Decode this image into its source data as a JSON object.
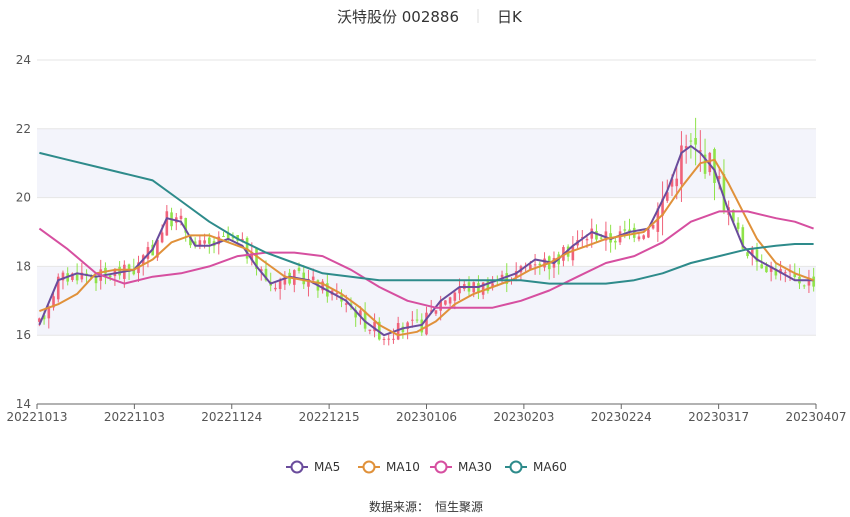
{
  "title": {
    "name": "沃特股份 002886",
    "period": "日K"
  },
  "source_label": "数据来源：",
  "source_value": "恒生聚源",
  "chart_data": {
    "type": "candlestick",
    "x_ticks": [
      "20221013",
      "20221103",
      "20221124",
      "20221215",
      "20230106",
      "20230203",
      "20230224",
      "20230317",
      "20230407"
    ],
    "y_ticks": [
      "14",
      "16",
      "18",
      "20",
      "22",
      "24"
    ],
    "ylim": [
      14,
      24
    ],
    "grid": true,
    "legend_position": "bottom-center",
    "colors": {
      "up": "#f0627a",
      "down": "#8fe34a",
      "band": "#f3f4fb",
      "grid": "#e6e6e6"
    },
    "ma_series": [
      {
        "name": "MA5",
        "color": "#6a4c9c",
        "points": [
          [
            0,
            16.3
          ],
          [
            4,
            17.6
          ],
          [
            8,
            17.8
          ],
          [
            12,
            17.7
          ],
          [
            16,
            17.8
          ],
          [
            20,
            17.9
          ],
          [
            24,
            18.5
          ],
          [
            27,
            19.4
          ],
          [
            30,
            19.3
          ],
          [
            33,
            18.6
          ],
          [
            36,
            18.6
          ],
          [
            40,
            18.8
          ],
          [
            43,
            18.6
          ],
          [
            46,
            18.0
          ],
          [
            49,
            17.5
          ],
          [
            53,
            17.7
          ],
          [
            57,
            17.6
          ],
          [
            61,
            17.3
          ],
          [
            65,
            17.0
          ],
          [
            69,
            16.4
          ],
          [
            73,
            16.0
          ],
          [
            77,
            16.2
          ],
          [
            81,
            16.3
          ],
          [
            85,
            17.0
          ],
          [
            89,
            17.4
          ],
          [
            93,
            17.4
          ],
          [
            97,
            17.6
          ],
          [
            101,
            17.8
          ],
          [
            105,
            18.2
          ],
          [
            109,
            18.1
          ],
          [
            113,
            18.6
          ],
          [
            117,
            19.0
          ],
          [
            121,
            18.8
          ],
          [
            125,
            19.0
          ],
          [
            129,
            19.1
          ],
          [
            133,
            20.2
          ],
          [
            136,
            21.3
          ],
          [
            138,
            21.5
          ],
          [
            140,
            21.3
          ],
          [
            143,
            20.8
          ],
          [
            146,
            19.6
          ],
          [
            149,
            18.6
          ],
          [
            152,
            18.2
          ],
          [
            156,
            17.9
          ],
          [
            160,
            17.6
          ],
          [
            163,
            17.6
          ],
          [
            164,
            17.6
          ]
        ]
      },
      {
        "name": "MA10",
        "color": "#e0913a",
        "points": [
          [
            0,
            16.7
          ],
          [
            4,
            16.9
          ],
          [
            8,
            17.2
          ],
          [
            12,
            17.8
          ],
          [
            16,
            17.9
          ],
          [
            20,
            17.9
          ],
          [
            24,
            18.2
          ],
          [
            28,
            18.7
          ],
          [
            32,
            18.9
          ],
          [
            36,
            18.9
          ],
          [
            40,
            18.7
          ],
          [
            44,
            18.5
          ],
          [
            48,
            18.1
          ],
          [
            52,
            17.7
          ],
          [
            56,
            17.6
          ],
          [
            60,
            17.5
          ],
          [
            64,
            17.2
          ],
          [
            68,
            16.8
          ],
          [
            72,
            16.3
          ],
          [
            76,
            16.0
          ],
          [
            80,
            16.1
          ],
          [
            84,
            16.4
          ],
          [
            88,
            16.9
          ],
          [
            92,
            17.2
          ],
          [
            96,
            17.4
          ],
          [
            100,
            17.6
          ],
          [
            104,
            17.9
          ],
          [
            108,
            18.1
          ],
          [
            112,
            18.4
          ],
          [
            116,
            18.6
          ],
          [
            120,
            18.8
          ],
          [
            124,
            18.9
          ],
          [
            128,
            19.0
          ],
          [
            132,
            19.5
          ],
          [
            136,
            20.3
          ],
          [
            140,
            21.0
          ],
          [
            143,
            21.1
          ],
          [
            146,
            20.4
          ],
          [
            149,
            19.6
          ],
          [
            152,
            18.8
          ],
          [
            156,
            18.1
          ],
          [
            160,
            17.8
          ],
          [
            164,
            17.6
          ]
        ]
      },
      {
        "name": "MA30",
        "color": "#d64fa0",
        "points": [
          [
            0,
            19.1
          ],
          [
            6,
            18.5
          ],
          [
            12,
            17.8
          ],
          [
            18,
            17.5
          ],
          [
            24,
            17.7
          ],
          [
            30,
            17.8
          ],
          [
            36,
            18.0
          ],
          [
            42,
            18.3
          ],
          [
            48,
            18.4
          ],
          [
            54,
            18.4
          ],
          [
            60,
            18.3
          ],
          [
            66,
            17.9
          ],
          [
            72,
            17.4
          ],
          [
            78,
            17.0
          ],
          [
            84,
            16.8
          ],
          [
            90,
            16.8
          ],
          [
            96,
            16.8
          ],
          [
            102,
            17.0
          ],
          [
            108,
            17.3
          ],
          [
            114,
            17.7
          ],
          [
            120,
            18.1
          ],
          [
            126,
            18.3
          ],
          [
            132,
            18.7
          ],
          [
            138,
            19.3
          ],
          [
            144,
            19.6
          ],
          [
            150,
            19.6
          ],
          [
            156,
            19.4
          ],
          [
            160,
            19.3
          ],
          [
            164,
            19.1
          ]
        ]
      },
      {
        "name": "MA60",
        "color": "#2e8b8b",
        "points": [
          [
            0,
            21.3
          ],
          [
            6,
            21.1
          ],
          [
            12,
            20.9
          ],
          [
            18,
            20.7
          ],
          [
            24,
            20.5
          ],
          [
            30,
            19.9
          ],
          [
            36,
            19.3
          ],
          [
            42,
            18.8
          ],
          [
            48,
            18.4
          ],
          [
            54,
            18.1
          ],
          [
            60,
            17.8
          ],
          [
            66,
            17.7
          ],
          [
            72,
            17.6
          ],
          [
            78,
            17.6
          ],
          [
            84,
            17.6
          ],
          [
            90,
            17.6
          ],
          [
            96,
            17.6
          ],
          [
            102,
            17.6
          ],
          [
            108,
            17.5
          ],
          [
            114,
            17.5
          ],
          [
            120,
            17.5
          ],
          [
            126,
            17.6
          ],
          [
            132,
            17.8
          ],
          [
            138,
            18.1
          ],
          [
            144,
            18.3
          ],
          [
            150,
            18.5
          ],
          [
            156,
            18.6
          ],
          [
            160,
            18.65
          ],
          [
            164,
            18.65
          ]
        ]
      }
    ]
  }
}
